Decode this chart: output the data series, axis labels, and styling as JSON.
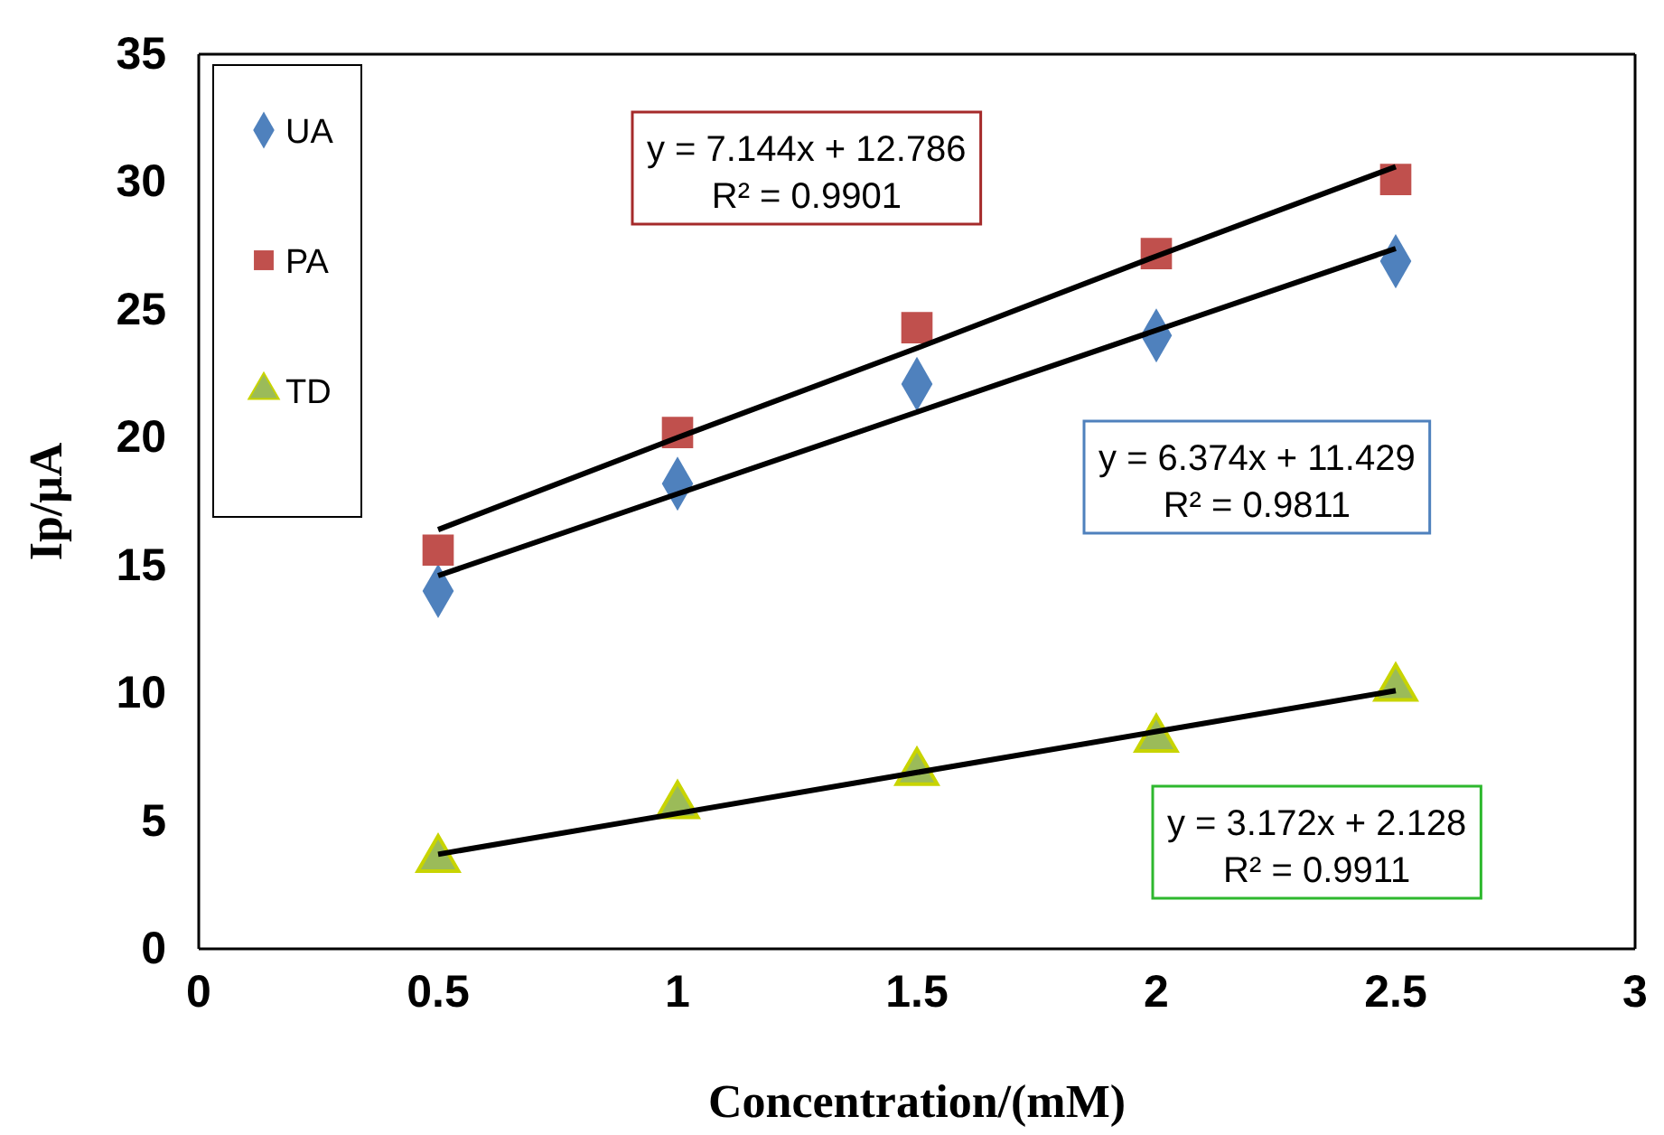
{
  "chart_data": {
    "type": "scatter",
    "xlabel": "Concentration/(mM)",
    "ylabel": "Ip/μA",
    "x": [
      0.5,
      1,
      1.5,
      2,
      2.5
    ],
    "xlim": [
      0,
      3
    ],
    "xticks": [
      0,
      0.5,
      1,
      1.5,
      2,
      2.5,
      3
    ],
    "ylim": [
      0,
      35
    ],
    "yticks": [
      0,
      5,
      10,
      15,
      20,
      25,
      30,
      35
    ],
    "grid": false,
    "legend": "top left",
    "series": [
      {
        "name": "UA",
        "color": "#4f81bd",
        "marker": "diamond",
        "values": [
          14,
          18.2,
          22.1,
          24,
          26.9
        ]
      },
      {
        "name": "PA",
        "color": "#c0504d",
        "marker": "square",
        "values": [
          15.6,
          20.2,
          24.3,
          27.2,
          30.1
        ]
      },
      {
        "name": "TD",
        "color": "#9bbb59",
        "marker": "triangle",
        "values": [
          3.5,
          5.6,
          6.9,
          8.2,
          10.2
        ]
      },
      {
        "type": "line",
        "color": "#000000",
        "marker": "none",
        "values": [
          16.4,
          20.0,
          23.5,
          27.1,
          30.6
        ]
      },
      {
        "type": "line",
        "color": "#000000",
        "marker": "none",
        "values": [
          14.6,
          17.8,
          21.0,
          24.2,
          27.4
        ]
      },
      {
        "type": "line",
        "color": "#000000",
        "marker": "none",
        "values": [
          3.7,
          5.3,
          6.9,
          8.5,
          10.1
        ]
      }
    ],
    "annotations": [
      "y = 7.144x + 12.786\nR² = 0.9901",
      "y = 6.374x + 11.429\nR² = 0.9811",
      "y = 3.172x + 2.128\nR² = 0.9911"
    ]
  }
}
